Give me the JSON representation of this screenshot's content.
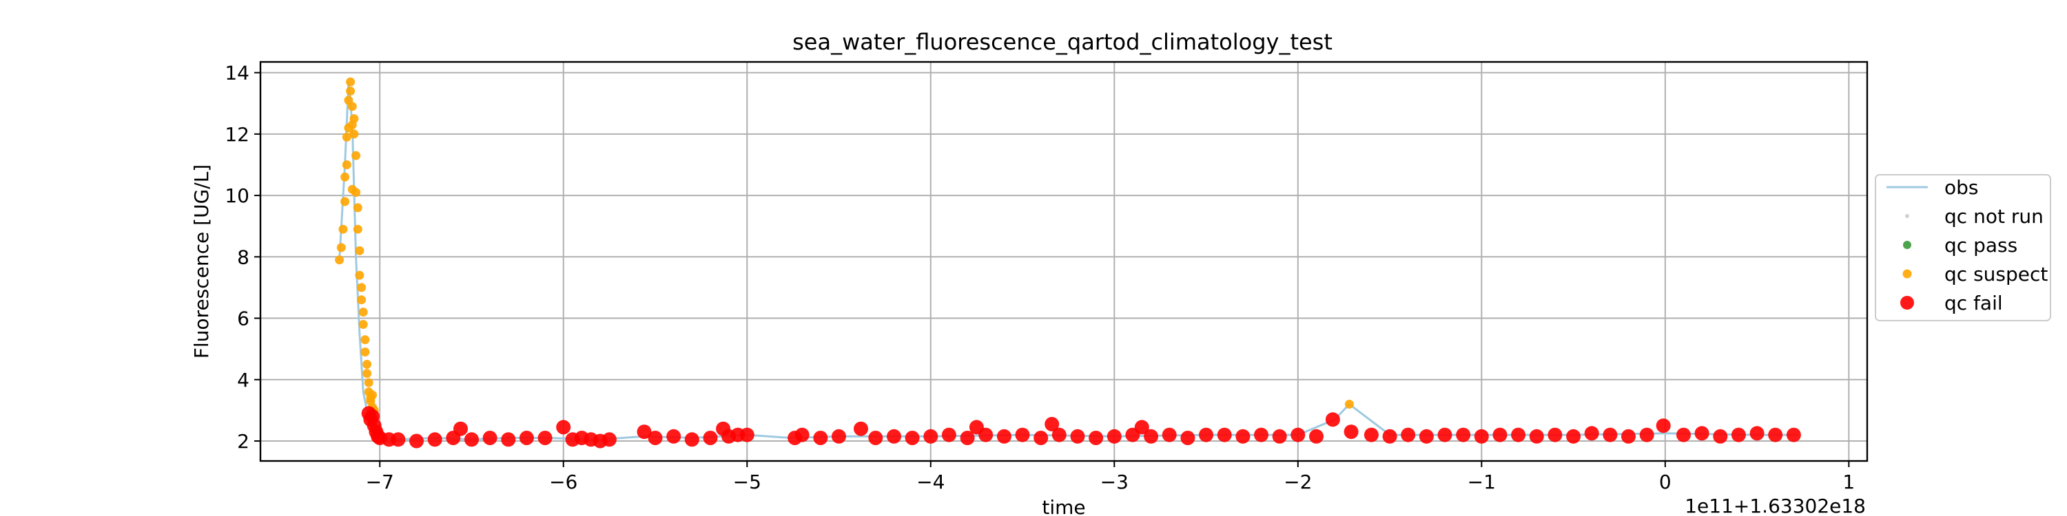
{
  "chart_data": {
    "type": "scatter",
    "title": "sea_water_fluorescence_qartod_climatology_test",
    "xlabel": "time",
    "ylabel": "Fluorescence [UG/L]",
    "x_offset_label": "1e11+1.63302e18",
    "xlim": [
      -7.65,
      1.1
    ],
    "ylim": [
      1.35,
      14.35
    ],
    "x_ticks": [
      -7,
      -6,
      -5,
      -4,
      -3,
      -2,
      -1,
      0,
      1
    ],
    "x_tick_labels": [
      "−7",
      "−6",
      "−5",
      "−4",
      "−3",
      "−2",
      "−1",
      "0",
      "1"
    ],
    "y_ticks": [
      2,
      4,
      6,
      8,
      10,
      12,
      14
    ],
    "y_tick_labels": [
      "2",
      "4",
      "6",
      "8",
      "10",
      "12",
      "14"
    ],
    "grid": true,
    "legend_position": "right",
    "series": [
      {
        "name": "obs",
        "style": "line",
        "color": "#9ecae1",
        "x": [
          -7.22,
          -7.19,
          -7.17,
          -7.15,
          -7.13,
          -7.11,
          -7.09,
          -7.07,
          -7.05,
          -7.03,
          -7.0,
          -6.9,
          -6.7,
          -6.5,
          -6.3,
          -6.1,
          -5.8,
          -5.56,
          -5.3,
          -5.0,
          -4.76,
          -4.5,
          -4.0,
          -3.5,
          -3.0,
          -2.5,
          -2.0,
          -1.8,
          -1.72,
          -1.5,
          -1.0,
          -0.5,
          0.0,
          0.5,
          0.72
        ],
        "y": [
          7.9,
          11.0,
          13.7,
          12.3,
          8.0,
          5.5,
          3.6,
          3.0,
          2.6,
          2.3,
          2.1,
          2.05,
          2.1,
          2.05,
          2.1,
          2.1,
          2.05,
          2.15,
          2.1,
          2.2,
          2.1,
          2.15,
          2.15,
          2.2,
          2.15,
          2.2,
          2.2,
          2.7,
          3.2,
          2.2,
          2.2,
          2.2,
          2.25,
          2.2,
          2.2
        ]
      },
      {
        "name": "qc not run",
        "style": "point",
        "color": "#cccccc",
        "x": [],
        "y": []
      },
      {
        "name": "qc pass",
        "style": "point",
        "color": "#3a9a3a",
        "x": [],
        "y": []
      },
      {
        "name": "qc suspect",
        "style": "point",
        "color": "#ffa500",
        "x": [
          -7.22,
          -7.21,
          -7.2,
          -7.19,
          -7.18,
          -7.18,
          -7.17,
          -7.16,
          -7.16,
          -7.15,
          -7.15,
          -7.14,
          -7.14,
          -7.13,
          -7.13,
          -7.12,
          -7.12,
          -7.11,
          -7.11,
          -7.1,
          -7.1,
          -7.09,
          -7.09,
          -7.08,
          -7.08,
          -7.07,
          -7.07,
          -7.06,
          -7.06,
          -7.05,
          -7.05,
          -7.04,
          -7.04,
          -7.03,
          -7.19,
          -7.17,
          -7.15,
          -1.72
        ],
        "y": [
          7.9,
          8.3,
          8.9,
          9.8,
          11.0,
          11.9,
          13.1,
          13.7,
          13.4,
          12.9,
          12.3,
          12.5,
          12.0,
          11.3,
          10.1,
          9.6,
          8.9,
          8.2,
          7.4,
          7.0,
          6.6,
          6.2,
          5.8,
          5.3,
          4.9,
          4.5,
          4.2,
          3.9,
          3.6,
          3.4,
          3.3,
          3.1,
          3.5,
          3.0,
          10.6,
          12.2,
          10.2,
          3.2
        ]
      },
      {
        "name": "qc fail",
        "style": "point",
        "color": "#ff0000",
        "x": [
          -7.06,
          -7.05,
          -7.04,
          -7.03,
          -7.02,
          -7.01,
          -7.0,
          -6.95,
          -6.9,
          -6.8,
          -6.7,
          -6.6,
          -6.56,
          -6.5,
          -6.4,
          -6.3,
          -6.2,
          -6.1,
          -6.0,
          -5.95,
          -5.9,
          -5.85,
          -5.8,
          -5.75,
          -5.56,
          -5.5,
          -5.4,
          -5.3,
          -5.2,
          -5.13,
          -5.1,
          -5.05,
          -5.0,
          -4.74,
          -4.7,
          -4.6,
          -4.5,
          -4.38,
          -4.3,
          -4.2,
          -4.1,
          -4.0,
          -3.9,
          -3.8,
          -3.75,
          -3.7,
          -3.6,
          -3.5,
          -3.4,
          -3.34,
          -3.3,
          -3.2,
          -3.1,
          -3.0,
          -2.9,
          -2.85,
          -2.8,
          -2.7,
          -2.6,
          -2.5,
          -2.4,
          -2.3,
          -2.2,
          -2.1,
          -2.0,
          -1.9,
          -1.81,
          -1.71,
          -1.6,
          -1.5,
          -1.4,
          -1.3,
          -1.2,
          -1.1,
          -1.0,
          -0.9,
          -0.8,
          -0.7,
          -0.6,
          -0.5,
          -0.4,
          -0.3,
          -0.2,
          -0.1,
          -0.01,
          0.1,
          0.2,
          0.3,
          0.4,
          0.5,
          0.6,
          0.7
        ],
        "y": [
          2.9,
          2.7,
          2.8,
          2.5,
          2.3,
          2.15,
          2.1,
          2.05,
          2.05,
          2.0,
          2.05,
          2.1,
          2.4,
          2.05,
          2.1,
          2.05,
          2.1,
          2.1,
          2.45,
          2.05,
          2.1,
          2.05,
          2.0,
          2.05,
          2.3,
          2.1,
          2.15,
          2.05,
          2.1,
          2.4,
          2.15,
          2.2,
          2.2,
          2.1,
          2.2,
          2.1,
          2.15,
          2.4,
          2.1,
          2.15,
          2.1,
          2.15,
          2.2,
          2.1,
          2.45,
          2.2,
          2.15,
          2.2,
          2.1,
          2.55,
          2.2,
          2.15,
          2.1,
          2.15,
          2.2,
          2.45,
          2.15,
          2.2,
          2.1,
          2.2,
          2.2,
          2.15,
          2.2,
          2.15,
          2.2,
          2.15,
          2.7,
          2.3,
          2.2,
          2.15,
          2.2,
          2.15,
          2.2,
          2.2,
          2.15,
          2.2,
          2.2,
          2.15,
          2.2,
          2.15,
          2.25,
          2.2,
          2.15,
          2.2,
          2.5,
          2.2,
          2.25,
          2.15,
          2.2,
          2.25,
          2.2,
          2.2
        ]
      }
    ]
  }
}
